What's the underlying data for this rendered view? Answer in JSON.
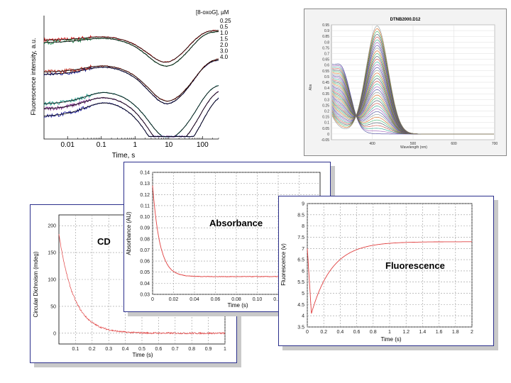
{
  "chart_data": [
    {
      "id": "stopped-flow-8oxoG",
      "type": "line",
      "title": "",
      "xlabel": "Time, s",
      "ylabel": "Fluorescence intensity, a.u.",
      "xscale": "log",
      "xlim": [
        0.002,
        300
      ],
      "xticks": [
        0.01,
        0.1,
        1,
        10,
        100
      ],
      "xticklabels": [
        "0.01",
        "0.1",
        "1",
        "10",
        "100"
      ],
      "legend_title": "[8-oxoG], µM",
      "legend": [
        "0.25",
        "0.5",
        "1.0",
        "1.5",
        "2.0",
        "3.0",
        "4.0"
      ],
      "series": [
        {
          "name": "0.25",
          "color": "#d41f1f",
          "offset": 0.86,
          "a": 0.07,
          "b": 0.04,
          "d": 0.3,
          "rise": 40
        },
        {
          "name": "0.5",
          "color": "#2e8b57",
          "offset": 0.84,
          "a": 0.08,
          "b": 0.05,
          "d": 0.32,
          "rise": 45
        },
        {
          "name": "1.0",
          "color": "#1a1a8c",
          "offset": 0.58,
          "a": 0.06,
          "b": 0.08,
          "d": 0.4,
          "rise": 55
        },
        {
          "name": "1.5",
          "color": "#c0392b",
          "offset": 0.6,
          "a": 0.06,
          "b": 0.07,
          "d": 0.38,
          "rise": 60
        },
        {
          "name": "2.0",
          "color": "#2a9d8f",
          "offset": 0.34,
          "a": 0.05,
          "b": 0.12,
          "d": 0.48,
          "rise": 70
        },
        {
          "name": "3.0",
          "color": "#7b2d8b",
          "offset": 0.3,
          "a": 0.04,
          "b": 0.12,
          "d": 0.52,
          "rise": 85
        },
        {
          "name": "4.0",
          "color": "#22229b",
          "offset": 0.24,
          "a": 0.04,
          "b": 0.14,
          "d": 0.55,
          "rise": 100
        }
      ]
    },
    {
      "id": "dtnb-spectra",
      "type": "line",
      "title": "DTNB2000.D12",
      "xlabel": "Wavelength (nm)",
      "ylabel": "Abs",
      "xlim": [
        300,
        700
      ],
      "ylim": [
        -0.05,
        0.95
      ],
      "xticks": [
        400,
        500,
        600,
        700
      ],
      "yticks": [
        -0.05,
        0,
        0.05,
        0.1,
        0.15,
        0.2,
        0.25,
        0.3,
        0.35,
        0.4,
        0.45,
        0.5,
        0.55,
        0.6,
        0.65,
        0.7,
        0.75,
        0.8,
        0.85,
        0.9,
        0.95
      ],
      "ytick_labels": [
        "-0.05",
        "0",
        "0.05",
        "0.1",
        "0.15",
        "0.2",
        "0.25",
        "0.3",
        "0.35",
        "0.4",
        "0.45",
        "0.5",
        "0.55",
        "0.6",
        "0.65",
        "0.7",
        "0.75",
        "0.8",
        "0.85",
        "0.9",
        "0.95"
      ],
      "n_spectra": 40,
      "peak_nm": 412,
      "peak_max": 0.94,
      "isosbestic_nm": 343,
      "isosbestic_abs": 0.42,
      "initial_peak_nm": 325,
      "initial_peak_abs": 0.49,
      "colors": [
        "#2b2b8f",
        "#8e44ad",
        "#16a085",
        "#c0392b",
        "#2c3e50",
        "#27ae60",
        "#d35400",
        "#7f8c8d"
      ]
    },
    {
      "id": "cd-kinetics",
      "type": "line",
      "label": "CD",
      "xlabel": "Time (s)",
      "ylabel": "Circular Dichroism (mdeg)",
      "xlim": [
        0,
        1
      ],
      "ylim": [
        -20,
        220
      ],
      "xticks": [
        0.1,
        0.2,
        0.3,
        0.4,
        0.5,
        0.6,
        0.7,
        0.8,
        0.9,
        1
      ],
      "xticklabels": [
        "0.1",
        "0.2",
        "0.3",
        "0.4",
        "0.5",
        "0.6",
        "0.7",
        "0.8",
        "0.9",
        "1"
      ],
      "yticks": [
        0,
        50,
        100,
        150,
        200
      ],
      "yticklabels": [
        "0",
        "50",
        "100",
        "150",
        "200"
      ],
      "start": 185,
      "end": 0,
      "tau": 0.09,
      "noise": 3,
      "color": "#e04040"
    },
    {
      "id": "absorbance-kinetics",
      "type": "line",
      "label": "Absorbance",
      "xlabel": "Time (s)",
      "ylabel": "Absorbance (AU)",
      "xlim": [
        0,
        0.16
      ],
      "ylim": [
        0.03,
        0.14
      ],
      "xticks": [
        0,
        0.02,
        0.04,
        0.06,
        0.08,
        0.1,
        0.12,
        0.14
      ],
      "xticklabels": [
        "0",
        "0.02",
        "0.04",
        "0.06",
        "0.08",
        "0.10",
        "0.12",
        "0.14"
      ],
      "yticks": [
        0.03,
        0.04,
        0.05,
        0.06,
        0.07,
        0.08,
        0.09,
        0.1,
        0.11,
        0.12,
        0.13,
        0.14
      ],
      "yticklabels": [
        "0.03",
        "0.04",
        "0.05",
        "0.06",
        "0.07",
        "0.08",
        "0.09",
        "0.10",
        "0.11",
        "0.12",
        "0.13",
        "0.14"
      ],
      "start": 0.128,
      "end": 0.046,
      "tau": 0.007,
      "noise": 0.0005,
      "color": "#e04040"
    },
    {
      "id": "fluorescence-kinetics",
      "type": "line",
      "label": "Fluorescence",
      "xlabel": "Time (s)",
      "ylabel": "Fluorescence (v)",
      "xlim": [
        0,
        2
      ],
      "ylim": [
        3.5,
        9
      ],
      "xticks": [
        0,
        0.2,
        0.4,
        0.6,
        0.8,
        1,
        1.2,
        1.4,
        1.6,
        1.8,
        2
      ],
      "xticklabels": [
        "0",
        "0.2",
        "0.4",
        "0.6",
        "0.8",
        "1",
        "1.2",
        "1.4",
        "1.6",
        "1.8",
        "2"
      ],
      "yticks": [
        3.5,
        4,
        4.5,
        5,
        5.5,
        6,
        6.5,
        7,
        7.5,
        8,
        8.5,
        9
      ],
      "yticklabels": [
        "3.5",
        "4",
        "4.5",
        "5",
        "5.5",
        "6",
        "6.5",
        "7",
        "7.5",
        "8",
        "8.5",
        "9"
      ],
      "initial": 7.0,
      "dip": 4.1,
      "dip_t": 0.05,
      "plateau": 7.3,
      "tau": 0.25,
      "color": "#e04040"
    }
  ]
}
